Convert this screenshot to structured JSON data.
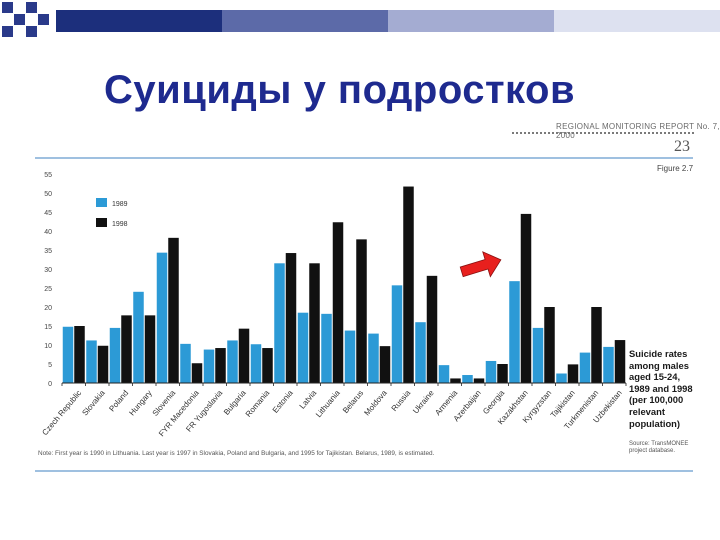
{
  "slide": {
    "title": "Суициды у подростков"
  },
  "report": {
    "header": "REGIONAL MONITORING REPORT No. 7, 2000",
    "page_number": "23",
    "figure_label": "Figure 2.7"
  },
  "caption": {
    "lines": [
      "Suicide rates",
      "among males",
      "aged 15-24,",
      "1989 and 1998",
      "(per 100,000",
      "relevant",
      "population)"
    ],
    "source_lines": [
      "Source: TransMONEE",
      "project database."
    ]
  },
  "footnote": "Note: First year is 1990 in Lithuania. Last year is 1997 in Slovakia, Poland and Bulgaria, and 1995 for Tajikistan. Belarus, 1989, is estimated.",
  "colors": {
    "series_1989": "#2c9ad6",
    "series_1998": "#111111",
    "title": "#1e2a8f",
    "rule": "#9fc0e0",
    "arrow": "#e8201e"
  },
  "annotation": {
    "type": "red-arrow",
    "points_to": "Kazakhstan"
  },
  "chart_data": {
    "type": "bar",
    "title": "",
    "xlabel": "",
    "ylabel": "",
    "ylim": [
      0,
      55
    ],
    "yticks": [
      "0",
      "5",
      "10",
      "15",
      "20",
      "25",
      "30",
      "35",
      "40",
      "45",
      "50",
      "55"
    ],
    "grid": false,
    "legend_position": "top-left",
    "categories": [
      "Czech Republic",
      "Slovakia",
      "Poland",
      "Hungary",
      "Slovenia",
      "FYR Macedonia",
      "FR Yugoslavia",
      "Bulgaria",
      "Romania",
      "Estonia",
      "Latvia",
      "Lithuania",
      "Belarus",
      "Moldova",
      "Russia",
      "Ukraine",
      "Armenia",
      "Azerbaijan",
      "Georgia",
      "Kazakhstan",
      "Kyrgyzstan",
      "Tajikistan",
      "Turkmenistan",
      "Uzbekistan"
    ],
    "series": [
      {
        "name": "1989",
        "values": [
          14.8,
          11.2,
          14.5,
          24,
          34.3,
          10.3,
          8.8,
          11.2,
          10.2,
          31.5,
          18.5,
          18.2,
          13.8,
          13,
          25.7,
          16,
          4.7,
          2.1,
          5.8,
          26.8,
          14.5,
          2.5,
          8,
          9.5
        ]
      },
      {
        "name": "1998",
        "values": [
          15,
          9.8,
          17.8,
          17.8,
          38.2,
          5.2,
          9.2,
          14.3,
          9.2,
          34.2,
          31.5,
          42.3,
          37.8,
          9.7,
          51.7,
          28.2,
          1.2,
          1.2,
          5,
          44.5,
          20,
          4.9,
          20,
          11.3
        ]
      }
    ]
  }
}
